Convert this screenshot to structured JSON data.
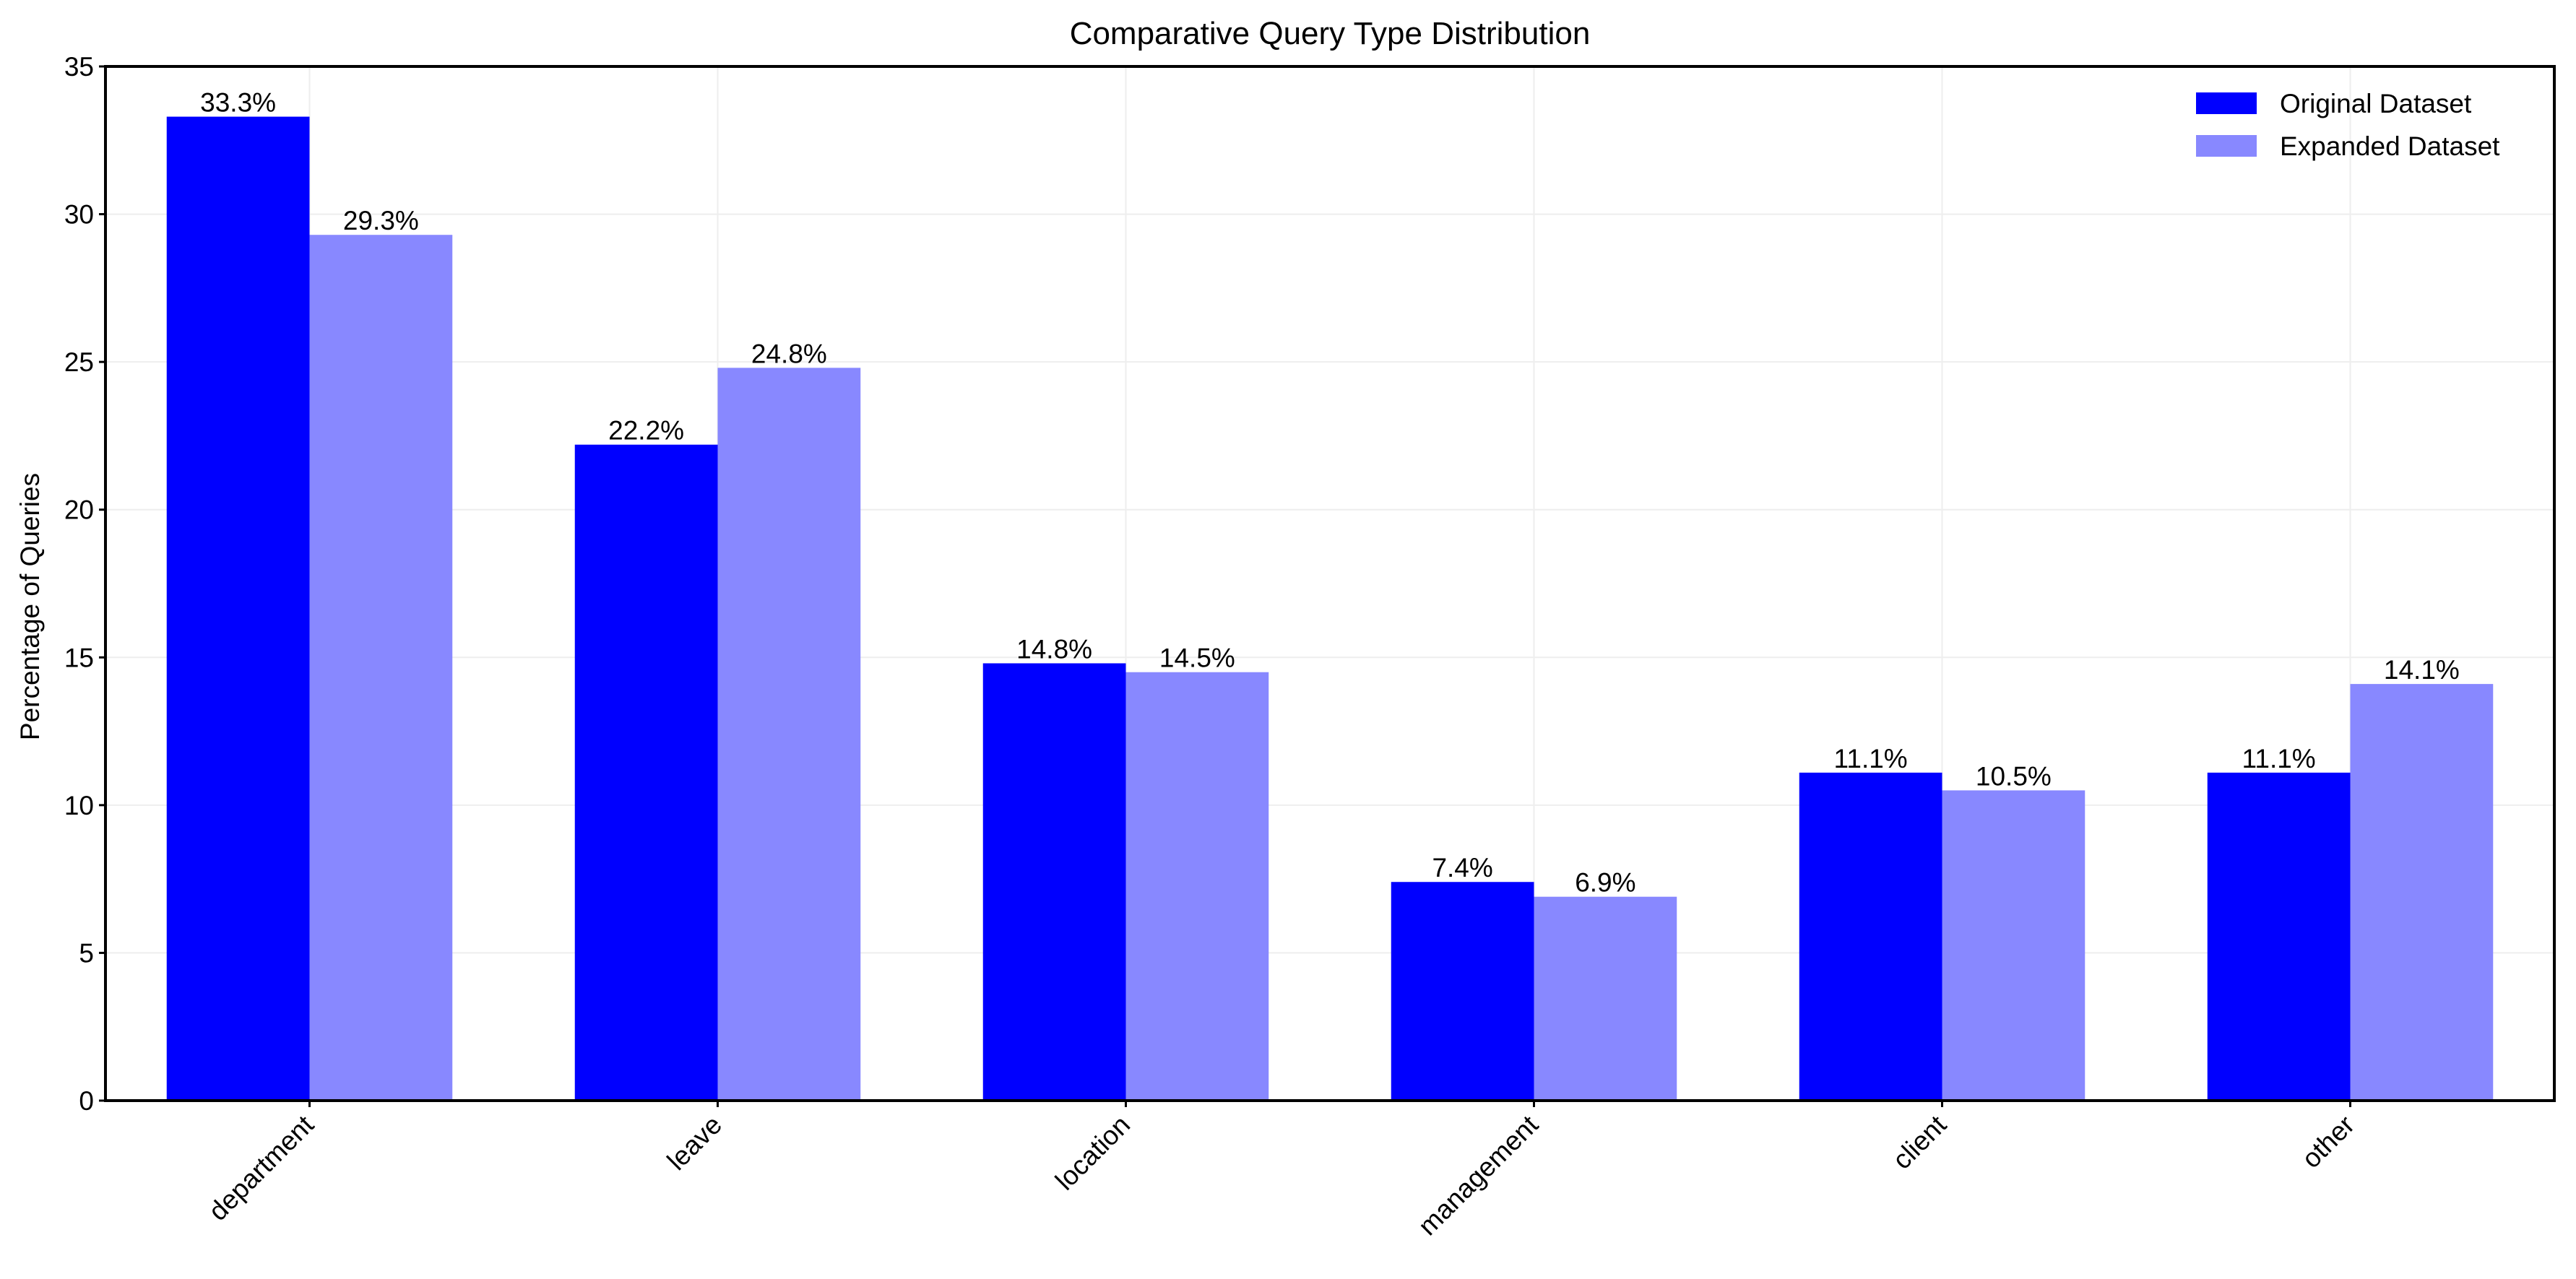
{
  "chart_data": {
    "type": "bar",
    "title": "Comparative Query Type Distribution",
    "xlabel": "",
    "ylabel": "Percentage of Queries",
    "categories": [
      "department",
      "leave",
      "location",
      "management",
      "client",
      "other"
    ],
    "series": [
      {
        "name": "Original Dataset",
        "color": "#0000ff",
        "values": [
          33.3,
          22.2,
          14.8,
          7.4,
          11.1,
          11.1
        ],
        "labels": [
          "33.3%",
          "22.2%",
          "14.8%",
          "7.4%",
          "11.1%",
          "11.1%"
        ]
      },
      {
        "name": "Expanded Dataset",
        "color": "#8888ff",
        "values": [
          29.3,
          24.8,
          14.5,
          6.9,
          10.5,
          14.1
        ],
        "labels": [
          "29.3%",
          "24.8%",
          "14.5%",
          "6.9%",
          "10.5%",
          "14.1%"
        ]
      }
    ],
    "ylim": [
      0,
      35
    ],
    "yticks": [
      "0",
      "5",
      "10",
      "15",
      "20",
      "25",
      "30",
      "35"
    ],
    "grid": true,
    "legend_position": "top-right"
  }
}
